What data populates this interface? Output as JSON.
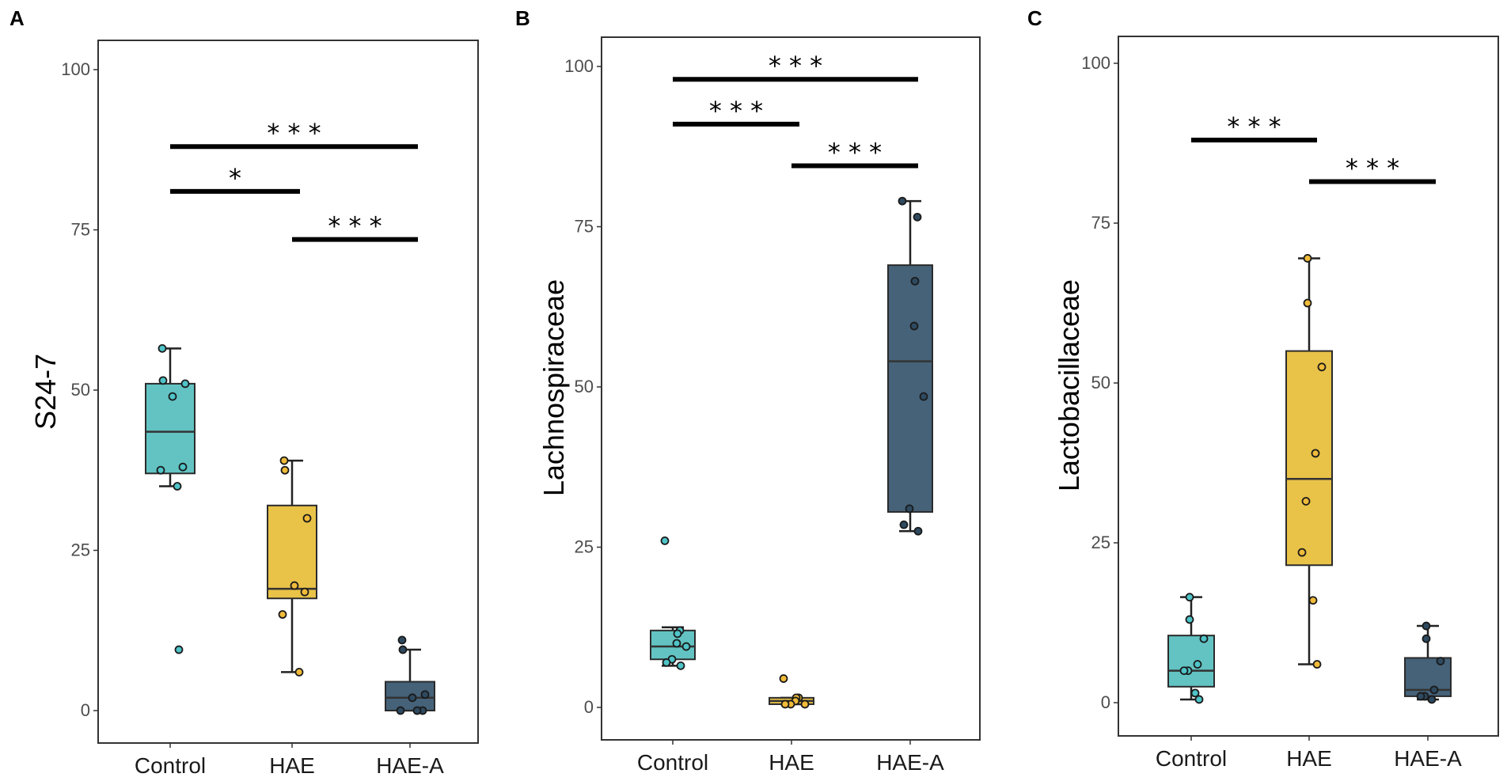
{
  "colors": {
    "Control": "#5bc0c0",
    "HAE": "#e8bf3e",
    "HAE-A": "#3b5a72",
    "Control_point": "#4fc4c8",
    "HAE_point": "#f0bb3a",
    "HAE-A_point": "#2e4a60"
  },
  "chart_data": [
    {
      "type": "box",
      "panel": "A",
      "title": "",
      "xlabel": "",
      "ylabel": "S24-7",
      "ylim": [
        0,
        100
      ],
      "yticks": [
        "0",
        "25",
        "50",
        "75",
        "100"
      ],
      "categories": [
        "Control",
        "HAE",
        "HAE-A"
      ],
      "boxes": [
        {
          "group": "Control",
          "q1": 37,
          "median": 43.5,
          "q3": 51,
          "whisker_low": 35,
          "whisker_high": 56.5
        },
        {
          "group": "HAE",
          "q1": 17.5,
          "median": 19,
          "q3": 32,
          "whisker_low": 6,
          "whisker_high": 39
        },
        {
          "group": "HAE-A",
          "q1": 0,
          "median": 2,
          "q3": 4.5,
          "whisker_low": 0,
          "whisker_high": 9.5
        }
      ],
      "points": [
        {
          "group": "Control",
          "values": [
            56.5,
            51.5,
            51,
            49,
            38,
            37.5,
            35,
            9.5
          ]
        },
        {
          "group": "HAE",
          "values": [
            39,
            37.5,
            30,
            19.5,
            18.5,
            15,
            6
          ]
        },
        {
          "group": "HAE-A",
          "values": [
            11,
            9.5,
            2.5,
            2,
            0,
            0,
            0
          ]
        }
      ],
      "significance": [
        {
          "from": "Control",
          "to": "HAE-A",
          "label": "* * *",
          "y": 88
        },
        {
          "from": "Control",
          "to": "HAE",
          "label": "*",
          "y": 81
        },
        {
          "from": "HAE",
          "to": "HAE-A",
          "label": "* * *",
          "y": 73.5
        }
      ]
    },
    {
      "type": "box",
      "panel": "B",
      "title": "",
      "xlabel": "",
      "ylabel": "Lachnospiraceae",
      "ylim": [
        0,
        100
      ],
      "yticks": [
        "0",
        "25",
        "50",
        "75",
        "100"
      ],
      "categories": [
        "Control",
        "HAE",
        "HAE-A"
      ],
      "boxes": [
        {
          "group": "Control",
          "q1": 7.5,
          "median": 9.5,
          "q3": 12,
          "whisker_low": 6.5,
          "whisker_high": 12.5
        },
        {
          "group": "HAE",
          "q1": 0.5,
          "median": 1,
          "q3": 1.5,
          "whisker_low": 0.5,
          "whisker_high": 1.5
        },
        {
          "group": "HAE-A",
          "q1": 30.5,
          "median": 54,
          "q3": 69,
          "whisker_low": 27.5,
          "whisker_high": 79
        }
      ],
      "points": [
        {
          "group": "Control",
          "values": [
            26,
            12,
            11.5,
            10,
            9.5,
            7.5,
            7,
            6.5
          ]
        },
        {
          "group": "HAE",
          "values": [
            4.5,
            1.5,
            1.5,
            1,
            0.5,
            0.5,
            0.5
          ]
        },
        {
          "group": "HAE-A",
          "values": [
            79,
            76.5,
            66.5,
            59.5,
            48.5,
            31,
            28.5,
            27.5
          ]
        }
      ],
      "significance": [
        {
          "from": "Control",
          "to": "HAE-A",
          "label": "* * *",
          "y": 98
        },
        {
          "from": "Control",
          "to": "HAE",
          "label": "* * *",
          "y": 91
        },
        {
          "from": "HAE",
          "to": "HAE-A",
          "label": "* * *",
          "y": 84.5
        }
      ]
    },
    {
      "type": "box",
      "panel": "C",
      "title": "",
      "xlabel": "",
      "ylabel": "Lactobacillaceae",
      "ylim": [
        0,
        100
      ],
      "yticks": [
        "0",
        "25",
        "50",
        "75",
        "100"
      ],
      "categories": [
        "Control",
        "HAE",
        "HAE-A"
      ],
      "boxes": [
        {
          "group": "Control",
          "q1": 2.5,
          "median": 5,
          "q3": 10.5,
          "whisker_low": 0.5,
          "whisker_high": 16.5
        },
        {
          "group": "HAE",
          "q1": 21.5,
          "median": 35,
          "q3": 55,
          "whisker_low": 6,
          "whisker_high": 69.5
        },
        {
          "group": "HAE-A",
          "q1": 1,
          "median": 2,
          "q3": 7,
          "whisker_low": 0.5,
          "whisker_high": 12
        }
      ],
      "points": [
        {
          "group": "Control",
          "values": [
            16.5,
            13,
            10,
            6,
            5,
            5,
            1.5,
            0.5
          ]
        },
        {
          "group": "HAE",
          "values": [
            69.5,
            62.5,
            52.5,
            39,
            31.5,
            23.5,
            16,
            6
          ]
        },
        {
          "group": "HAE-A",
          "values": [
            12,
            10,
            6.5,
            2,
            1,
            1,
            0.5
          ]
        }
      ],
      "significance": [
        {
          "from": "Control",
          "to": "HAE",
          "label": "* * *",
          "y": 88
        },
        {
          "from": "HAE",
          "to": "HAE-A",
          "label": "* * *",
          "y": 81.5
        }
      ]
    }
  ]
}
